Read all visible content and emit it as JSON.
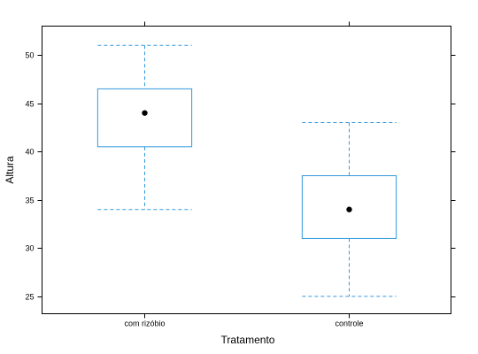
{
  "chart_data": {
    "type": "box",
    "xlabel": "Tratamento",
    "ylabel": "Altura",
    "ylim": [
      23.2,
      53.0
    ],
    "yticks": [
      25,
      30,
      35,
      40,
      45,
      50
    ],
    "categories": [
      "com rizóbio",
      "controle"
    ],
    "boxes": [
      {
        "category": "com rizóbio",
        "min": 34,
        "q1": 40.5,
        "median": 44,
        "q3": 46.5,
        "max": 51
      },
      {
        "category": "controle",
        "min": 25,
        "q1": 31,
        "median": 34,
        "q3": 37.5,
        "max": 43
      }
    ],
    "colors": {
      "box": "#3399dd",
      "median_dot": "#000000",
      "frame": "#000000"
    }
  }
}
